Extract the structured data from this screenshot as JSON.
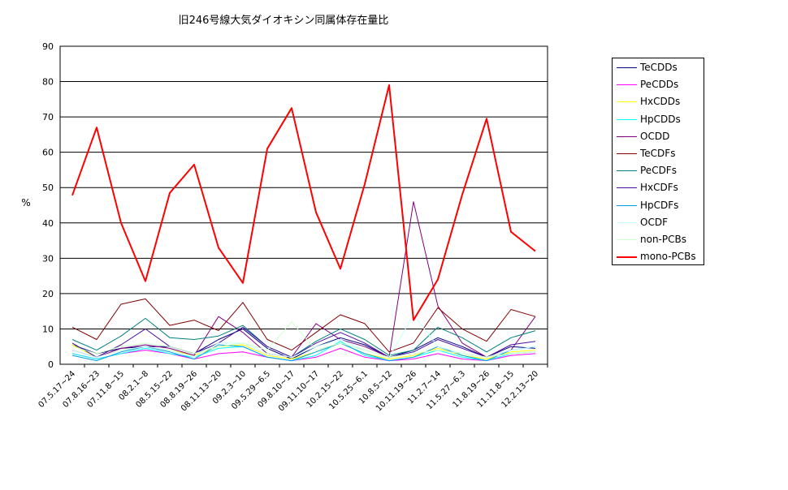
{
  "chart_data": {
    "type": "line",
    "title": "旧246号線大気ダイオキシン同属体存在量比",
    "ylabel": "%",
    "xlabel": "",
    "ylim": [
      0,
      90
    ],
    "yticks": [
      "0",
      "10",
      "20",
      "30",
      "40",
      "50",
      "60",
      "70",
      "80",
      "90"
    ],
    "grid": true,
    "legend_position": "right",
    "categories": [
      "07.5.17~24",
      "07.8.16~23",
      "07.11.8~15",
      "08.2.1~8",
      "08.5.15~22",
      "08.8.19~26",
      "08.11.13~20",
      "09.2.3~10",
      "09.5.29~6.5",
      "09.8.10~17",
      "09.11.10~17",
      "10.2.15~22",
      "10.5.25~6.1",
      "10.8.5~12",
      "10.11.19~26",
      "11.2.7~14",
      "11.5.27~6.3",
      "11.8.19~26",
      "11.11.8~15",
      "12.2.13~20"
    ],
    "series": [
      {
        "name": "TeCDDs",
        "color": "#000080",
        "width": 1,
        "values": [
          5.5,
          3.0,
          4.5,
          5.0,
          5.0,
          3.0,
          7.0,
          10.0,
          4.5,
          1.5,
          5.0,
          7.5,
          5.5,
          2.0,
          4.0,
          7.5,
          5.0,
          2.0,
          5.0,
          4.5
        ]
      },
      {
        "name": "PeCDDs",
        "color": "#ff00ff",
        "width": 1,
        "values": [
          3.0,
          1.5,
          3.0,
          4.0,
          3.0,
          1.5,
          3.0,
          3.5,
          2.0,
          1.0,
          2.0,
          4.5,
          2.0,
          1.0,
          1.5,
          3.0,
          1.5,
          1.0,
          2.5,
          3.0
        ]
      },
      {
        "name": "HxCDDs",
        "color": "#ffff00",
        "width": 1,
        "values": [
          5.5,
          2.0,
          4.0,
          5.0,
          4.0,
          2.5,
          5.0,
          5.5,
          2.5,
          1.5,
          3.5,
          6.0,
          3.0,
          1.5,
          2.5,
          4.5,
          2.5,
          1.5,
          3.5,
          4.0
        ]
      },
      {
        "name": "HpCDDs",
        "color": "#00ffff",
        "width": 1,
        "values": [
          3.0,
          1.5,
          3.0,
          4.5,
          3.0,
          2.0,
          4.5,
          5.0,
          2.0,
          1.0,
          2.5,
          6.5,
          2.5,
          1.0,
          2.0,
          4.0,
          2.0,
          1.0,
          3.0,
          3.5
        ]
      },
      {
        "name": "OCDD",
        "color": "#800080",
        "width": 1,
        "values": [
          4.0,
          2.0,
          4.5,
          5.5,
          4.5,
          2.5,
          13.5,
          9.0,
          3.0,
          2.0,
          11.5,
          7.0,
          5.0,
          2.0,
          46.0,
          16.5,
          6.0,
          2.0,
          4.0,
          13.5
        ]
      },
      {
        "name": "TeCDFs",
        "color": "#800000",
        "width": 1,
        "values": [
          10.5,
          7.0,
          17.0,
          18.5,
          11.0,
          12.5,
          9.5,
          17.5,
          7.0,
          4.0,
          9.0,
          14.0,
          11.5,
          3.5,
          6.0,
          16.0,
          10.0,
          6.5,
          15.5,
          13.5
        ]
      },
      {
        "name": "PeCDFs",
        "color": "#008080",
        "width": 1,
        "values": [
          7.0,
          4.0,
          8.0,
          13.0,
          7.5,
          7.0,
          8.0,
          11.0,
          5.0,
          2.0,
          6.5,
          10.0,
          7.0,
          2.5,
          4.0,
          10.5,
          7.5,
          3.5,
          7.5,
          9.5
        ]
      },
      {
        "name": "HxCDFs",
        "color": "#4b0fa0",
        "width": 1,
        "values": [
          6.0,
          2.0,
          5.5,
          10.0,
          5.0,
          3.0,
          6.0,
          10.5,
          5.0,
          2.0,
          6.0,
          9.0,
          6.0,
          2.0,
          3.5,
          7.0,
          4.5,
          2.0,
          5.5,
          6.5
        ]
      },
      {
        "name": "HpCDFs",
        "color": "#00a0e0",
        "width": 1,
        "values": [
          2.5,
          1.0,
          3.5,
          5.0,
          3.5,
          1.5,
          5.5,
          5.0,
          2.0,
          1.0,
          3.5,
          6.0,
          3.0,
          1.0,
          2.0,
          5.0,
          2.5,
          1.0,
          4.0,
          5.0
        ]
      },
      {
        "name": "OCDF",
        "color": "#c8ffff",
        "width": 1,
        "values": [
          4.0,
          2.0,
          4.0,
          5.0,
          4.0,
          2.0,
          6.0,
          6.0,
          3.0,
          2.0,
          5.0,
          7.0,
          4.0,
          2.0,
          14.0,
          5.0,
          3.0,
          2.0,
          4.0,
          5.0
        ]
      },
      {
        "name": "non-PCBs",
        "color": "#ccffcc",
        "width": 1,
        "values": [
          5.0,
          3.0,
          5.0,
          6.0,
          5.0,
          3.0,
          5.0,
          6.0,
          4.0,
          12.0,
          4.0,
          6.0,
          4.0,
          2.0,
          3.0,
          4.0,
          3.0,
          2.0,
          3.0,
          3.5
        ]
      },
      {
        "name": "mono-PCBs",
        "color": "#ff0000",
        "width": 2,
        "values": [
          47.8,
          67.0,
          40.0,
          23.5,
          48.5,
          56.5,
          33.0,
          23.0,
          61.0,
          72.5,
          43.0,
          27.0,
          51.0,
          79.0,
          12.5,
          24.0,
          48.0,
          69.5,
          37.5,
          32.0
        ]
      }
    ]
  }
}
